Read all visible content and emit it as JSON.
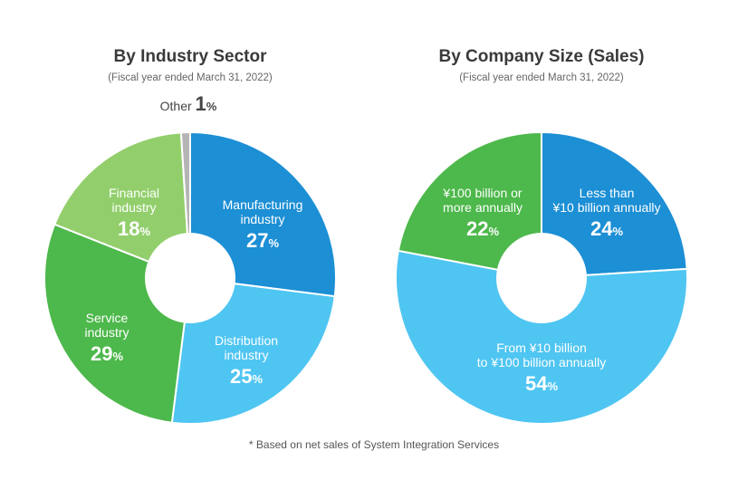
{
  "footnote": "* Based on net sales of System Integration Services",
  "chart_data": [
    {
      "type": "pie",
      "title": "By Industry Sector",
      "subtitle": "(Fiscal year ended March 31, 2022)",
      "slices": [
        {
          "label": [
            "Manufacturing",
            "industry"
          ],
          "value": 27,
          "display": "27",
          "color": "#1c8fd5"
        },
        {
          "label": [
            "Distribution",
            "industry"
          ],
          "value": 25,
          "display": "25",
          "color": "#4fc5f2"
        },
        {
          "label": [
            "Service",
            "industry"
          ],
          "value": 29,
          "display": "29",
          "color": "#4db84b"
        },
        {
          "label": [
            "Financial",
            "industry"
          ],
          "value": 18,
          "display": "18",
          "color": "#92cf6c"
        },
        {
          "label": [
            "Other"
          ],
          "value": 1,
          "display": "1",
          "color": "#b5b5b5",
          "outside": true
        }
      ]
    },
    {
      "type": "pie",
      "title": "By Company Size (Sales)",
      "subtitle": "(Fiscal year ended March 31, 2022)",
      "slices": [
        {
          "label": [
            "Less than",
            "¥10 billion annually"
          ],
          "value": 24,
          "display": "24",
          "color": "#1c8fd5"
        },
        {
          "label": [
            "From ¥10 billion",
            "to ¥100 billion annually"
          ],
          "value": 54,
          "display": "54",
          "color": "#4fc5f2"
        },
        {
          "label": [
            "¥100 billion or",
            "more annually"
          ],
          "value": 22,
          "display": "22",
          "color": "#4db84b"
        }
      ]
    }
  ]
}
